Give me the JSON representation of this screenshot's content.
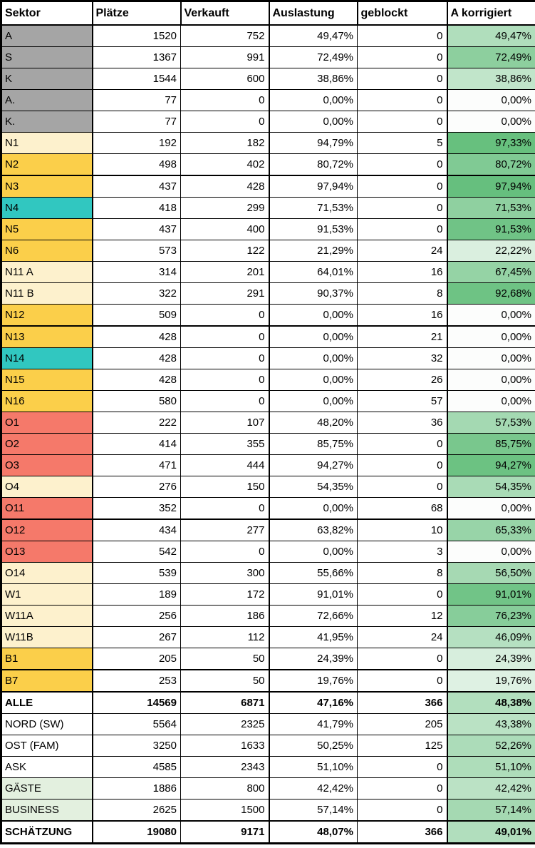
{
  "colors": {
    "border": "#000000",
    "scale_low": "#FCFDFC",
    "scale_high": "#63BE7B",
    "sector_fills": {
      "gray": "#A5A5A5",
      "gold": "#FBCF4A",
      "teal": "#31C7C0",
      "cream": "#FDF1CD",
      "salmon": "#F5796A",
      "lightgreen": "#E3F0DF",
      "white": "#FFFFFF"
    }
  },
  "table": {
    "columns": [
      {
        "key": "sektor",
        "label": "Sektor"
      },
      {
        "key": "plaetze",
        "label": "Plätze"
      },
      {
        "key": "verkauft",
        "label": "Verkauft"
      },
      {
        "key": "auslastung",
        "label": "Auslastung"
      },
      {
        "key": "geblockt",
        "label": "geblockt"
      },
      {
        "key": "akorrigiert",
        "label": "A korrigiert"
      }
    ],
    "rows": [
      {
        "sektor": "A",
        "fill": "gray",
        "plaetze": "1520",
        "verkauft": "752",
        "auslastung": "49,47%",
        "geblockt": "0",
        "akorrigiert": "49,47%"
      },
      {
        "sektor": "S",
        "fill": "gray",
        "plaetze": "1367",
        "verkauft": "991",
        "auslastung": "72,49%",
        "geblockt": "0",
        "akorrigiert": "72,49%"
      },
      {
        "sektor": "K",
        "fill": "gray",
        "plaetze": "1544",
        "verkauft": "600",
        "auslastung": "38,86%",
        "geblockt": "0",
        "akorrigiert": "38,86%"
      },
      {
        "sektor": "A.",
        "fill": "gray",
        "plaetze": "77",
        "verkauft": "0",
        "auslastung": "0,00%",
        "geblockt": "0",
        "akorrigiert": "0,00%"
      },
      {
        "sektor": "K.",
        "fill": "gray",
        "plaetze": "77",
        "verkauft": "0",
        "auslastung": "0,00%",
        "geblockt": "0",
        "akorrigiert": "0,00%"
      },
      {
        "sektor": "N1",
        "fill": "cream",
        "plaetze": "192",
        "verkauft": "182",
        "auslastung": "94,79%",
        "geblockt": "5",
        "akorrigiert": "97,33%"
      },
      {
        "sektor": "N2",
        "fill": "gold",
        "plaetze": "498",
        "verkauft": "402",
        "auslastung": "80,72%",
        "geblockt": "0",
        "akorrigiert": "80,72%"
      },
      {
        "sektor": "N3",
        "fill": "gold",
        "thick_top": true,
        "plaetze": "437",
        "verkauft": "428",
        "auslastung": "97,94%",
        "geblockt": "0",
        "akorrigiert": "97,94%"
      },
      {
        "sektor": "N4",
        "fill": "teal",
        "plaetze": "418",
        "verkauft": "299",
        "auslastung": "71,53%",
        "geblockt": "0",
        "akorrigiert": "71,53%"
      },
      {
        "sektor": "N5",
        "fill": "gold",
        "plaetze": "437",
        "verkauft": "400",
        "auslastung": "91,53%",
        "geblockt": "0",
        "akorrigiert": "91,53%"
      },
      {
        "sektor": "N6",
        "fill": "gold",
        "plaetze": "573",
        "verkauft": "122",
        "auslastung": "21,29%",
        "geblockt": "24",
        "akorrigiert": "22,22%"
      },
      {
        "sektor": "N11 A",
        "fill": "cream",
        "plaetze": "314",
        "verkauft": "201",
        "auslastung": "64,01%",
        "geblockt": "16",
        "akorrigiert": "67,45%"
      },
      {
        "sektor": "N11 B",
        "fill": "cream",
        "plaetze": "322",
        "verkauft": "291",
        "auslastung": "90,37%",
        "geblockt": "8",
        "akorrigiert": "92,68%"
      },
      {
        "sektor": "N12",
        "fill": "gold",
        "plaetze": "509",
        "verkauft": "0",
        "auslastung": "0,00%",
        "geblockt": "16",
        "akorrigiert": "0,00%"
      },
      {
        "sektor": "N13",
        "fill": "gold",
        "thick_top": true,
        "plaetze": "428",
        "verkauft": "0",
        "auslastung": "0,00%",
        "geblockt": "21",
        "akorrigiert": "0,00%"
      },
      {
        "sektor": "N14",
        "fill": "teal",
        "plaetze": "428",
        "verkauft": "0",
        "auslastung": "0,00%",
        "geblockt": "32",
        "akorrigiert": "0,00%"
      },
      {
        "sektor": "N15",
        "fill": "gold",
        "plaetze": "428",
        "verkauft": "0",
        "auslastung": "0,00%",
        "geblockt": "26",
        "akorrigiert": "0,00%"
      },
      {
        "sektor": "N16",
        "fill": "gold",
        "plaetze": "580",
        "verkauft": "0",
        "auslastung": "0,00%",
        "geblockt": "57",
        "akorrigiert": "0,00%"
      },
      {
        "sektor": "O1",
        "fill": "salmon",
        "plaetze": "222",
        "verkauft": "107",
        "auslastung": "48,20%",
        "geblockt": "36",
        "akorrigiert": "57,53%"
      },
      {
        "sektor": "O2",
        "fill": "salmon",
        "plaetze": "414",
        "verkauft": "355",
        "auslastung": "85,75%",
        "geblockt": "0",
        "akorrigiert": "85,75%"
      },
      {
        "sektor": "O3",
        "fill": "salmon",
        "plaetze": "471",
        "verkauft": "444",
        "auslastung": "94,27%",
        "geblockt": "0",
        "akorrigiert": "94,27%"
      },
      {
        "sektor": "O4",
        "fill": "cream",
        "plaetze": "276",
        "verkauft": "150",
        "auslastung": "54,35%",
        "geblockt": "0",
        "akorrigiert": "54,35%"
      },
      {
        "sektor": "O11",
        "fill": "salmon",
        "plaetze": "352",
        "verkauft": "0",
        "auslastung": "0,00%",
        "geblockt": "68",
        "akorrigiert": "0,00%"
      },
      {
        "sektor": "O12",
        "fill": "salmon",
        "thick_top": true,
        "plaetze": "434",
        "verkauft": "277",
        "auslastung": "63,82%",
        "geblockt": "10",
        "akorrigiert": "65,33%"
      },
      {
        "sektor": "O13",
        "fill": "salmon",
        "plaetze": "542",
        "verkauft": "0",
        "auslastung": "0,00%",
        "geblockt": "3",
        "akorrigiert": "0,00%"
      },
      {
        "sektor": "O14",
        "fill": "cream",
        "plaetze": "539",
        "verkauft": "300",
        "auslastung": "55,66%",
        "geblockt": "8",
        "akorrigiert": "56,50%"
      },
      {
        "sektor": "W1",
        "fill": "cream",
        "plaetze": "189",
        "verkauft": "172",
        "auslastung": "91,01%",
        "geblockt": "0",
        "akorrigiert": "91,01%"
      },
      {
        "sektor": "W11A",
        "fill": "cream",
        "plaetze": "256",
        "verkauft": "186",
        "auslastung": "72,66%",
        "geblockt": "12",
        "akorrigiert": "76,23%"
      },
      {
        "sektor": "W11B",
        "fill": "cream",
        "plaetze": "267",
        "verkauft": "112",
        "auslastung": "41,95%",
        "geblockt": "24",
        "akorrigiert": "46,09%"
      },
      {
        "sektor": "B1",
        "fill": "gold",
        "plaetze": "205",
        "verkauft": "50",
        "auslastung": "24,39%",
        "geblockt": "0",
        "akorrigiert": "24,39%"
      },
      {
        "sektor": "B7",
        "fill": "gold",
        "thick_top": true,
        "plaetze": "253",
        "verkauft": "50",
        "auslastung": "19,76%",
        "geblockt": "0",
        "akorrigiert": "19,76%"
      },
      {
        "sektor": "ALLE",
        "fill": "white",
        "bold": true,
        "thick_top": true,
        "plaetze": "14569",
        "verkauft": "6871",
        "auslastung": "47,16%",
        "geblockt": "366",
        "akorrigiert": "48,38%"
      },
      {
        "sektor": "NORD (SW)",
        "fill": "white",
        "plaetze": "5564",
        "verkauft": "2325",
        "auslastung": "41,79%",
        "geblockt": "205",
        "akorrigiert": "43,38%"
      },
      {
        "sektor": "OST (FAM)",
        "fill": "white",
        "plaetze": "3250",
        "verkauft": "1633",
        "auslastung": "50,25%",
        "geblockt": "125",
        "akorrigiert": "52,26%"
      },
      {
        "sektor": "ASK",
        "fill": "white",
        "plaetze": "4585",
        "verkauft": "2343",
        "auslastung": "51,10%",
        "geblockt": "0",
        "akorrigiert": "51,10%"
      },
      {
        "sektor": "GÄSTE",
        "fill": "lightgreen",
        "plaetze": "1886",
        "verkauft": "800",
        "auslastung": "42,42%",
        "geblockt": "0",
        "akorrigiert": "42,42%"
      },
      {
        "sektor": "BUSINESS",
        "fill": "lightgreen",
        "plaetze": "2625",
        "verkauft": "1500",
        "auslastung": "57,14%",
        "geblockt": "0",
        "akorrigiert": "57,14%"
      },
      {
        "sektor": "SCHÄTZUNG",
        "fill": "white",
        "bold": true,
        "thick_top": true,
        "plaetze": "19080",
        "verkauft": "9171",
        "auslastung": "48,07%",
        "geblockt": "366",
        "akorrigiert": "49,01%"
      }
    ]
  }
}
